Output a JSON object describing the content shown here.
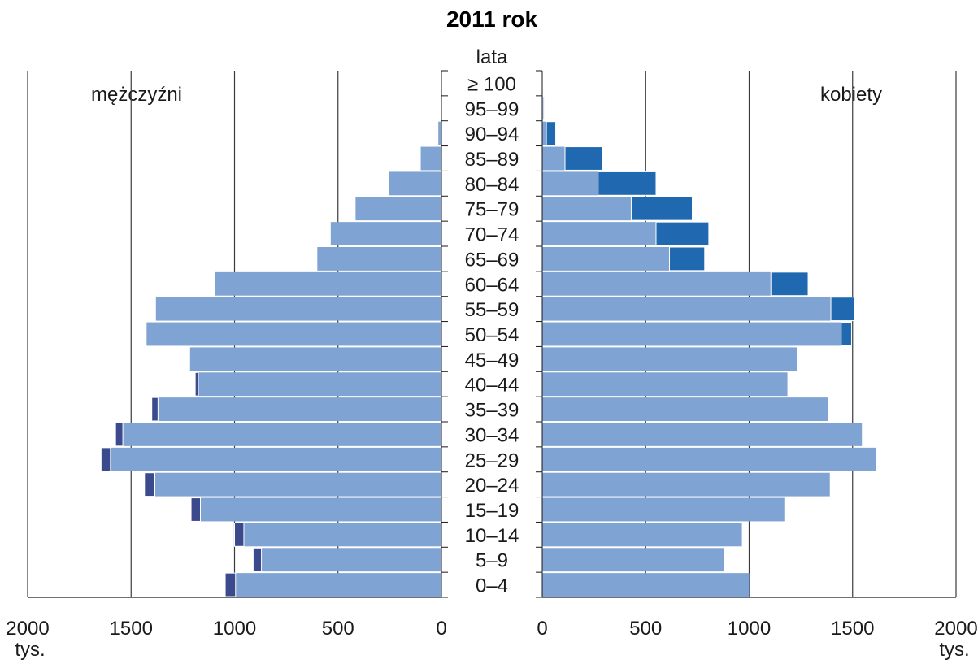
{
  "chart_data": {
    "type": "bar",
    "orientation": "horizontal",
    "layout": "population-pyramid",
    "title": "2011 rok",
    "age_axis_label": "lata",
    "age_groups": [
      "≥ 100",
      "95–99",
      "90–94",
      "85–89",
      "80–84",
      "75–79",
      "70–74",
      "65–69",
      "60–64",
      "55–59",
      "50–54",
      "45–49",
      "40–44",
      "35–39",
      "30–34",
      "25–29",
      "20–24",
      "15–19",
      "10–14",
      "5–9",
      "0–4"
    ],
    "left_panel": {
      "label": "mężczyźni",
      "xlim": [
        0,
        2000
      ],
      "ticks": [
        "2000",
        "1500",
        "1000",
        "500",
        "0"
      ],
      "unit": "tys.",
      "series": [
        {
          "color": "#7fa3d2",
          "values": [
            0,
            0,
            15,
            100,
            255,
            415,
            535,
            600,
            1095,
            1380,
            1425,
            1215,
            1175,
            1370,
            1540,
            1600,
            1385,
            1165,
            955,
            870,
            995
          ]
        },
        {
          "color": "#3b4a8c",
          "values": [
            0,
            0,
            0,
            0,
            0,
            0,
            0,
            0,
            0,
            0,
            0,
            0,
            15,
            30,
            35,
            45,
            50,
            45,
            45,
            40,
            50
          ]
        }
      ]
    },
    "right_panel": {
      "label": "kobiety",
      "xlim": [
        0,
        2000
      ],
      "ticks": [
        "0",
        "500",
        "1000",
        "1500",
        "2000"
      ],
      "unit": "tys.",
      "series": [
        {
          "color": "#7fa3d2",
          "values": [
            0,
            5,
            20,
            110,
            270,
            430,
            550,
            615,
            1105,
            1395,
            1445,
            1230,
            1185,
            1380,
            1545,
            1615,
            1390,
            1170,
            965,
            880,
            1000
          ]
        },
        {
          "color": "#2068b0",
          "values": [
            0,
            5,
            45,
            180,
            280,
            295,
            255,
            170,
            180,
            115,
            50,
            0,
            0,
            0,
            0,
            0,
            0,
            0,
            0,
            0,
            0
          ]
        }
      ]
    }
  }
}
